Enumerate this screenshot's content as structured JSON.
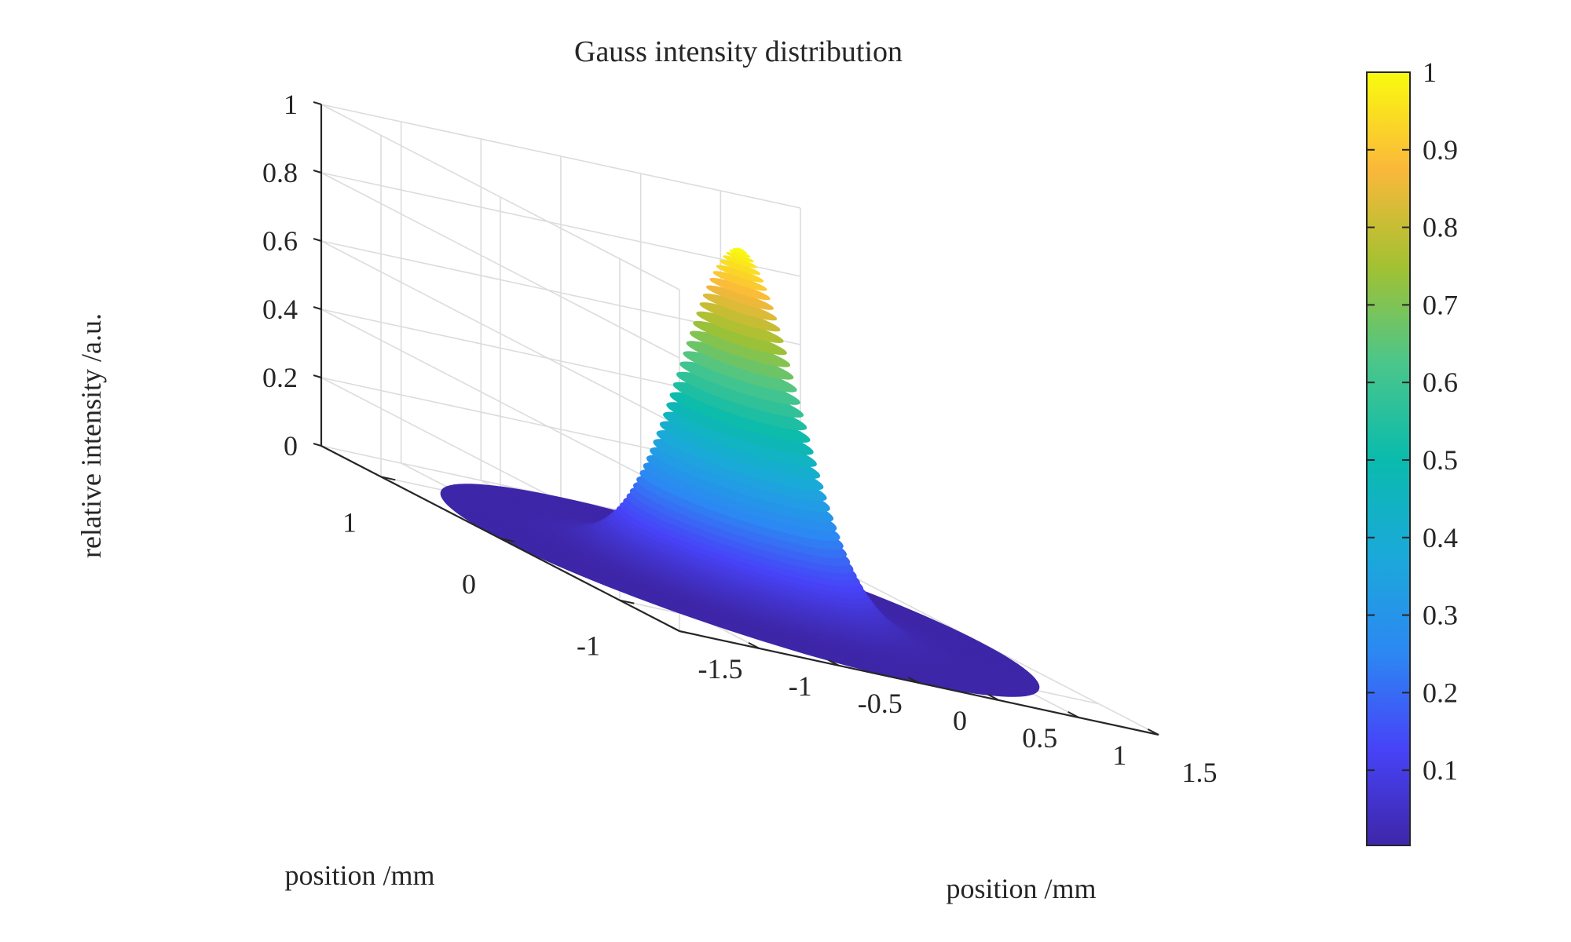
{
  "chart_data": {
    "type": "surface",
    "title": "Gauss intensity distribution",
    "xlabel": "position /mm",
    "ylabel": "position /mm",
    "zlabel": "relative intensity /a.u.",
    "x_ticks": [
      "-1.5",
      "-1",
      "-0.5",
      "0",
      "0.5",
      "1",
      "1.5"
    ],
    "y_ticks": [
      "-1",
      "0",
      "1"
    ],
    "z_ticks": [
      "0",
      "0.2",
      "0.4",
      "0.6",
      "0.8",
      "1"
    ],
    "colorbar_ticks": [
      "0.1",
      "0.2",
      "0.3",
      "0.4",
      "0.5",
      "0.6",
      "0.7",
      "0.8",
      "0.9",
      "1"
    ],
    "xlim": [
      -1.5,
      1.5
    ],
    "ylim": [
      -1.5,
      1.5
    ],
    "zlim": [
      0,
      1
    ],
    "colormap": "parula",
    "grid": true,
    "surface": {
      "function": "gaussian",
      "peak": 1,
      "center": [
        0,
        0
      ],
      "sigma_mm": 0.3,
      "domain_radius_mm": 1.5
    }
  }
}
